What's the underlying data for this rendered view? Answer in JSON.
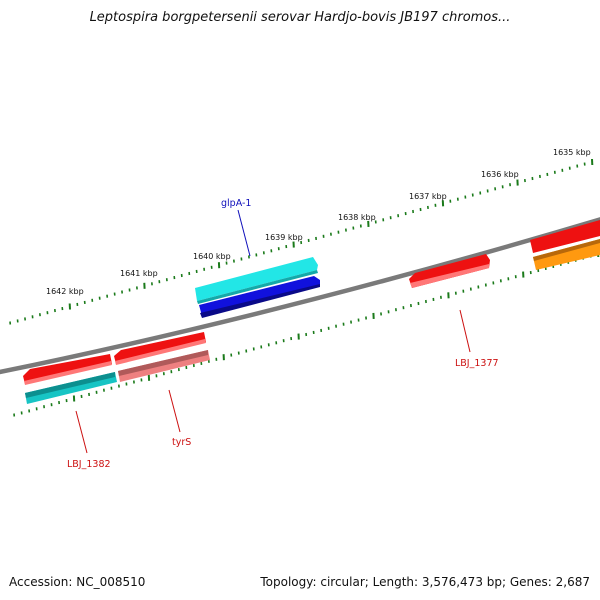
{
  "title": "Leptospira borgpetersenii serovar Hardjo-bovis JB197 chromos...",
  "footer": {
    "accession": "Accession: NC_008510",
    "stats": "Topology: circular; Length: 3,576,473 bp; Genes: 2,687"
  },
  "kbp_labels": [
    "1642 kbp",
    "1641 kbp",
    "1640 kbp",
    "1639 kbp",
    "1638 kbp",
    "1637 kbp",
    "1636 kbp",
    "1635 kbp"
  ],
  "gene_labels": {
    "glpA": "glpA-1",
    "lbj1377": "LBJ_1377",
    "tyrS": "tyrS",
    "lbj1382": "LBJ_1382"
  },
  "colors": {
    "backbone": "#7a7a7a",
    "ticks": "#1a7a1a",
    "red": "#ee1111",
    "cyan": "#22e6e6",
    "teal": "#17b4b4",
    "blue": "#1111dd",
    "pink": "#ee8080",
    "orange": "#ff9910",
    "blue_label": "#1111bb",
    "red_label": "#cc1111"
  }
}
